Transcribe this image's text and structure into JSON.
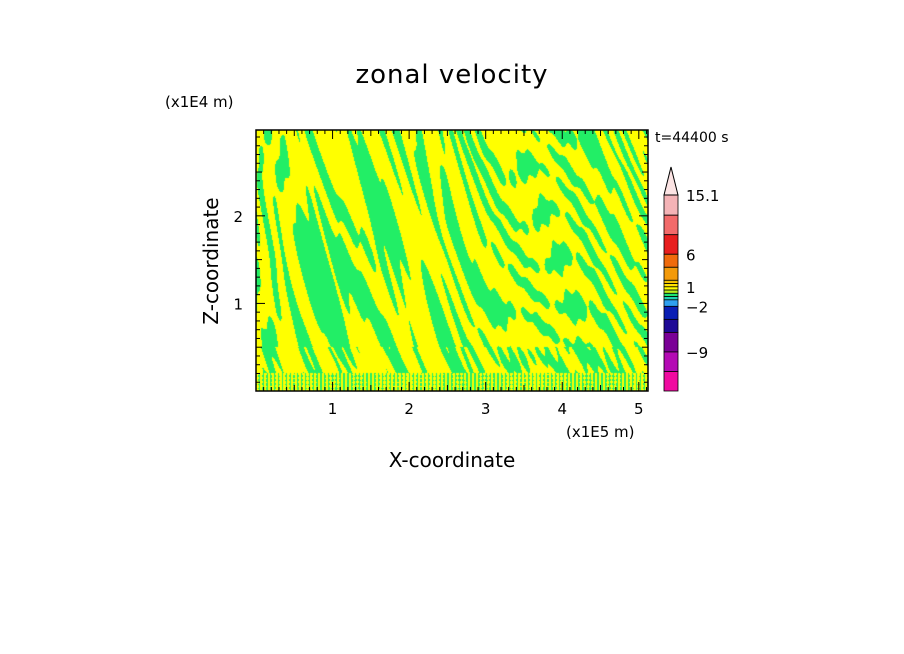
{
  "chart_data": {
    "type": "heatmap",
    "title": "zonal velocity",
    "xlabel": "X-coordinate",
    "ylabel": "Z-coordinate",
    "x_unit_label": "(x1E5 m)",
    "y_unit_label": "(x1E4 m)",
    "time_label": "t=44400 s",
    "xlim": [
      0,
      5.12
    ],
    "ylim": [
      0,
      2.98
    ],
    "x_ticks": [
      1,
      2,
      3,
      4,
      5
    ],
    "y_ticks": [
      1,
      2
    ],
    "colorbar": {
      "tick_labels": [
        {
          "value": 15.1,
          "label": "15.1"
        },
        {
          "value": 6,
          "label": "6"
        },
        {
          "value": 1,
          "label": "1"
        },
        {
          "value": -2,
          "label": "−2"
        },
        {
          "value": -9,
          "label": "−9"
        }
      ],
      "bands": [
        {
          "lo": 12,
          "hi": 15.1,
          "color": "#f4b3b6"
        },
        {
          "lo": 9,
          "hi": 12,
          "color": "#f26a6a"
        },
        {
          "lo": 6,
          "hi": 9,
          "color": "#e81e1e"
        },
        {
          "lo": 4,
          "hi": 6,
          "color": "#f06b0c"
        },
        {
          "lo": 2,
          "hi": 4,
          "color": "#f39a0b"
        },
        {
          "lo": 1.5,
          "hi": 2,
          "color": "#f3c300"
        },
        {
          "lo": 1,
          "hi": 1.5,
          "color": "#ffe400"
        },
        {
          "lo": 0.5,
          "hi": 1,
          "color": "#ffff00"
        },
        {
          "lo": 0,
          "hi": 0.5,
          "color": "#b6f01e"
        },
        {
          "lo": -0.5,
          "hi": 0,
          "color": "#1ee66e"
        },
        {
          "lo": -1,
          "hi": -0.5,
          "color": "#1ed2b4"
        },
        {
          "lo": -2,
          "hi": -1,
          "color": "#2fa0f0"
        },
        {
          "lo": -4,
          "hi": -2,
          "color": "#0a1eb4"
        },
        {
          "lo": -6,
          "hi": -4,
          "color": "#1e0a96"
        },
        {
          "lo": -9,
          "hi": -6,
          "color": "#7a0096"
        },
        {
          "lo": -12,
          "hi": -9,
          "color": "#b40ab4"
        },
        {
          "lo": -15,
          "hi": -12,
          "color": "#f00aa0"
        }
      ]
    },
    "field_colors": {
      "positive": "#ffff00",
      "negative": "#22ee66"
    }
  }
}
